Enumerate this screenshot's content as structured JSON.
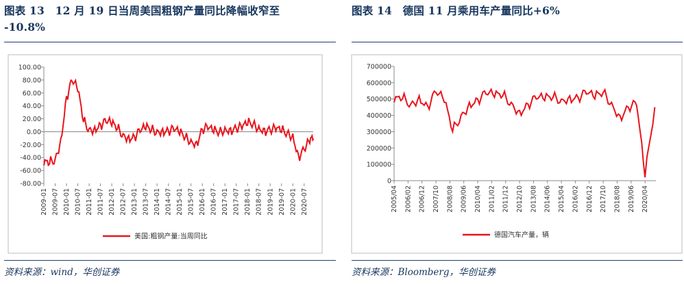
{
  "panels": [
    {
      "title_line1": "图表 13　12 月 19 日当周美国粗钢产量同比降幅收窄至",
      "title_line2": "-10.8%",
      "source": "资料来源：wind，华创证券"
    },
    {
      "title_line1": "图表 14　德国 11 月乘用车产量同比+6%",
      "source": "资料来源：Bloomberg，华创证券"
    }
  ],
  "chart_data": [
    {
      "type": "line",
      "series": [
        {
          "name": "美国:粗钢产量:当周同比",
          "color": "#e8141c"
        }
      ],
      "x": [
        "2009-01",
        "2009-04",
        "2009-07",
        "2009-10",
        "2010-01",
        "2010-04",
        "2010-07",
        "2010-10",
        "2011-01",
        "2011-04",
        "2011-07",
        "2011-10",
        "2012-01",
        "2012-04",
        "2012-07",
        "2012-10",
        "2013-01",
        "2013-04",
        "2013-07",
        "2013-10",
        "2014-01",
        "2014-04",
        "2014-07",
        "2014-10",
        "2015-01",
        "2015-04",
        "2015-07",
        "2015-10",
        "2016-01",
        "2016-04",
        "2016-07",
        "2016-10",
        "2017-01",
        "2017-04",
        "2017-07",
        "2017-10",
        "2018-01",
        "2018-04",
        "2018-07",
        "2018-10",
        "2019-01",
        "2019-04",
        "2019-07",
        "2019-10",
        "2020-01",
        "2020-04",
        "2020-07",
        "2020-10",
        "2020-12"
      ],
      "y": [
        -52,
        -50,
        -42,
        -10,
        55,
        78,
        62,
        15,
        5,
        8,
        12,
        14,
        9,
        4,
        -3,
        -6,
        -7,
        -1,
        3,
        2,
        3,
        5,
        2,
        1,
        -5,
        -9,
        -12,
        -15,
        4,
        3,
        -2,
        -1,
        7,
        6,
        5,
        4,
        10,
        12,
        9,
        5,
        2,
        1,
        -1,
        -2,
        -3,
        -36,
        -28,
        -18,
        -11
      ],
      "x_tick_labels": [
        "2009-01",
        "2009-07",
        "2010-01",
        "2010-07",
        "2011-01",
        "2011-07",
        "2012-01",
        "2012-07",
        "2013-01",
        "2013-07",
        "2014-01",
        "2014-07",
        "2015-01",
        "2015-07",
        "2016-01",
        "2016-07",
        "2017-01",
        "2017-07",
        "2018-01",
        "2018-07",
        "2019-01",
        "2019-07",
        "2020-01",
        "2020-07"
      ],
      "y_tick_labels": [
        "100.00",
        "80.00",
        "60.00",
        "40.00",
        "20.00",
        "0.00",
        "-20.00",
        "-40.00",
        "-60.00",
        "-80.00"
      ],
      "ylim": [
        -80,
        100
      ],
      "legend_position": "bottom"
    },
    {
      "type": "line",
      "series": [
        {
          "name": "德国汽车产量，辆",
          "color": "#e8141c"
        }
      ],
      "x": [
        "2005-04",
        "2005-10",
        "2006-04",
        "2006-10",
        "2007-04",
        "2007-10",
        "2008-04",
        "2008-10",
        "2009-04",
        "2009-10",
        "2010-04",
        "2010-10",
        "2011-04",
        "2011-10",
        "2012-04",
        "2012-10",
        "2013-04",
        "2013-10",
        "2014-04",
        "2014-10",
        "2015-04",
        "2015-10",
        "2016-04",
        "2016-10",
        "2017-04",
        "2017-10",
        "2018-04",
        "2018-10",
        "2019-04",
        "2019-10",
        "2020-04",
        "2020-11"
      ],
      "y": [
        480000,
        500000,
        470000,
        520000,
        460000,
        540000,
        480000,
        300000,
        400000,
        480000,
        500000,
        530000,
        510000,
        520000,
        480000,
        430000,
        470000,
        500000,
        490000,
        510000,
        500000,
        520000,
        510000,
        530000,
        500000,
        540000,
        480000,
        400000,
        450000,
        460000,
        20000,
        450000
      ],
      "x_tick_labels": [
        "2005/04",
        "2006/02",
        "2006/12",
        "2007/10",
        "2008/08",
        "2009/06",
        "2010/04",
        "2011/02",
        "2011/12",
        "2012/10",
        "2013/08",
        "2014/06",
        "2015/04",
        "2016/02",
        "2016/12",
        "2017/10",
        "2018/08",
        "2019/06",
        "2020/04"
      ],
      "y_tick_labels": [
        "700000",
        "600000",
        "500000",
        "400000",
        "300000",
        "200000",
        "100000",
        "0"
      ],
      "ylim": [
        0,
        700000
      ],
      "legend_position": "bottom"
    }
  ]
}
